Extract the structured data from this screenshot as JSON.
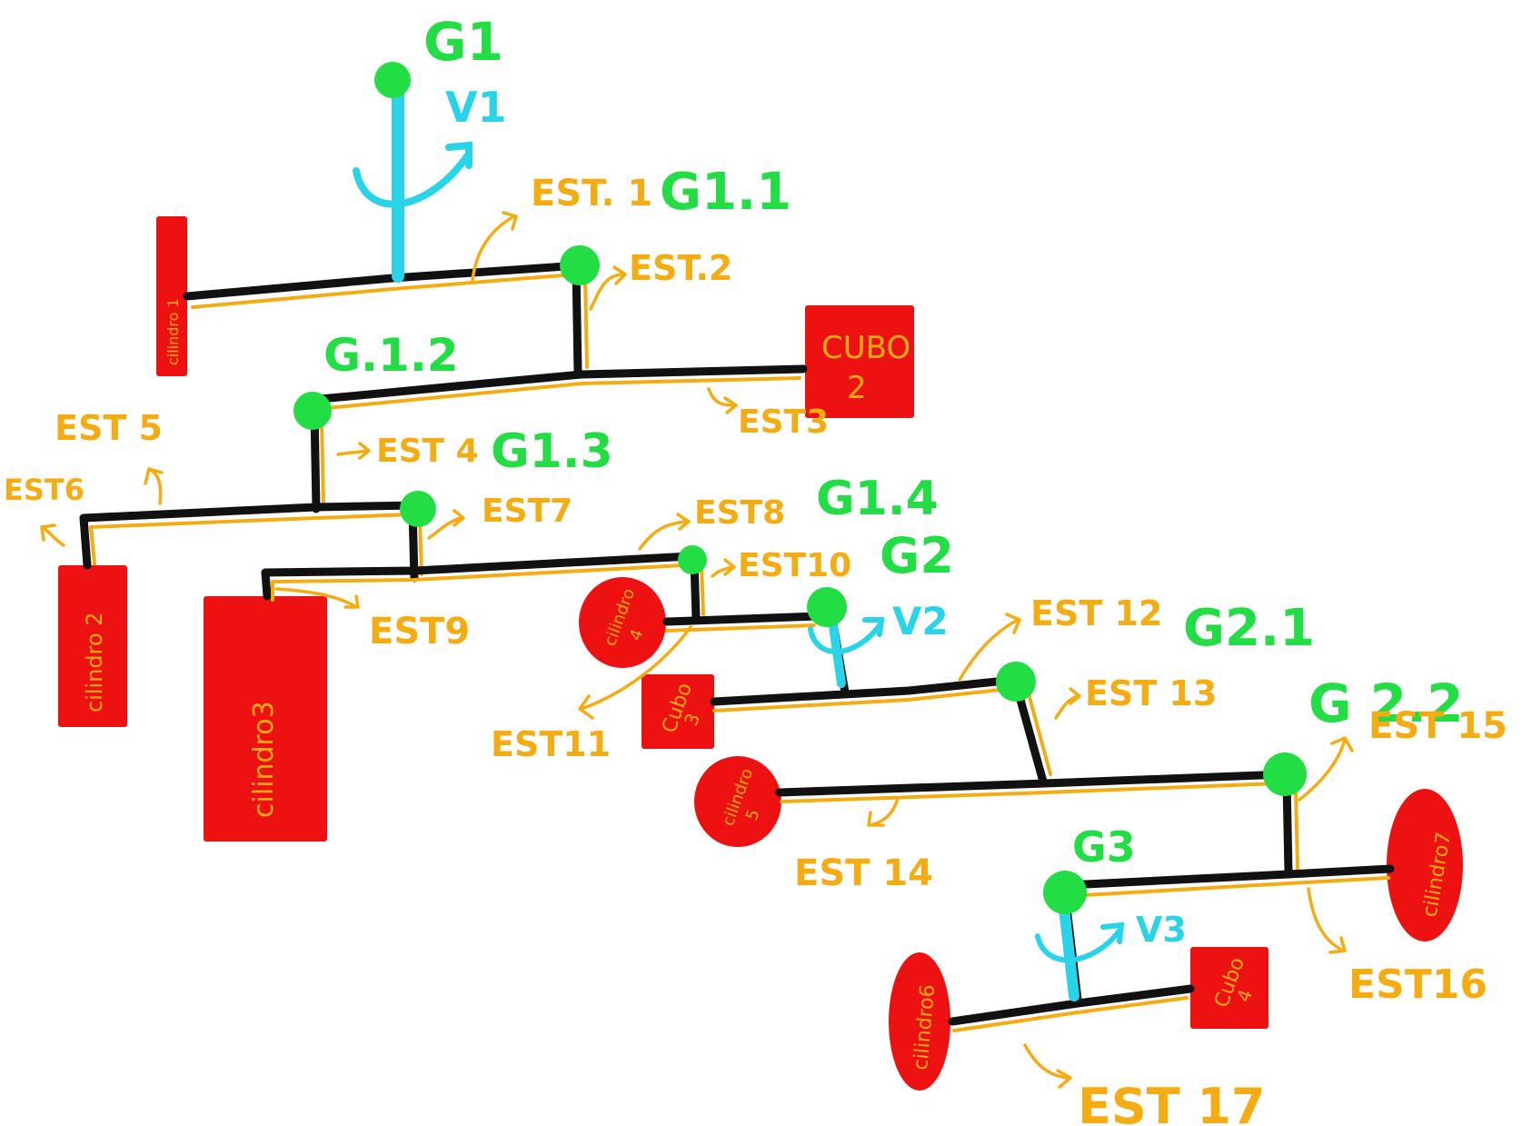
{
  "nodes": {
    "g1": "G1",
    "g11": "G1.1",
    "g12": "G.1.2",
    "g13": "G1.3",
    "g14": "G1.4",
    "g2": "G2",
    "g21": "G2.1",
    "g22": "G 2.2",
    "g3": "G3"
  },
  "velocities": {
    "v1": "V1",
    "v2": "V2",
    "v3": "V3"
  },
  "struts": {
    "est1": "EST. 1",
    "est2": "EST.2",
    "est3": "EST3",
    "est4": "EST 4",
    "est5": "EST 5",
    "est6": "EST6",
    "est7": "EST7",
    "est8": "EST8",
    "est9": "EST9",
    "est10": "EST10",
    "est11": "EST11",
    "est12": "EST 12",
    "est13": "EST 13",
    "est14": "EST 14",
    "est15": "EST 15",
    "est16": "EST16",
    "est17": "EST 17"
  },
  "objects": {
    "cilindro1": "cilindro 1",
    "cubo2": [
      "CUBO",
      "2"
    ],
    "cilindro2": "cilindro 2",
    "cilindro3": "cilindro3",
    "cilindro4": [
      "cilindro",
      "4"
    ],
    "cubo3": [
      "Cubo",
      "3"
    ],
    "cilindro5": [
      "cilindro",
      "5"
    ],
    "cilindro7": "cilindro7",
    "cilindro6": "cilindro6",
    "cubo4": [
      "Cubo",
      "4"
    ]
  },
  "colors": {
    "node": "#22dd44",
    "object": "#ee1111",
    "strut_label": "#f5ac12",
    "velocity": "#29d3e8",
    "bar": "#111111"
  }
}
